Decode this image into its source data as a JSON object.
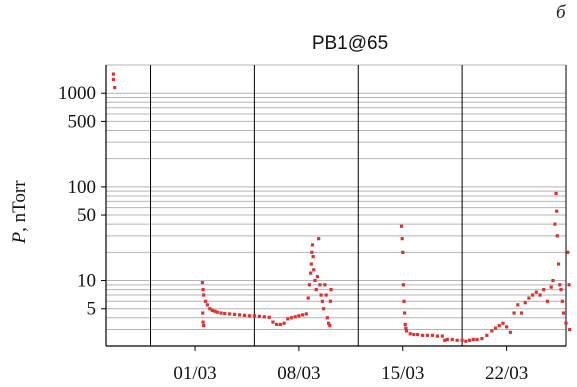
{
  "panel_letter": "б",
  "chart_data": {
    "type": "scatter",
    "title": "PB1@65",
    "ylabel_symbol": "P",
    "ylabel_rest": ", nTorr",
    "xlabel": "",
    "y_scale": "log",
    "ylim": [
      2,
      2000
    ],
    "xlim": [
      "2022-02-23",
      "2022-03-26"
    ],
    "y_ticks": [
      5,
      10,
      50,
      100,
      500,
      1000
    ],
    "y_tick_labels": [
      "5",
      "10",
      "50",
      "100",
      "500",
      "1000"
    ],
    "x_ticks": [
      "2022-03-01",
      "2022-03-08",
      "2022-03-15",
      "2022-03-22"
    ],
    "x_tick_labels": [
      "01/03",
      "08/03",
      "15/03",
      "22/03"
    ],
    "vertical_lines": [
      "2022-02-26",
      "2022-03-05",
      "2022-03-12",
      "2022-03-19",
      "2022-03-26"
    ],
    "grid": "horizontal minor lines",
    "marker_color": "#e03030",
    "series": [
      {
        "points": [
          [
            "2022-02-23 12:00",
            1600
          ],
          [
            "2022-02-23 12:00",
            1400
          ],
          [
            "2022-02-23 14:00",
            1150
          ],
          [
            "2022-03-01 12:00",
            9.5
          ],
          [
            "2022-03-01 13:00",
            8
          ],
          [
            "2022-03-01 14:00",
            7
          ],
          [
            "2022-03-01 12:30",
            4.5
          ],
          [
            "2022-03-01 13:00",
            3.6
          ],
          [
            "2022-03-01 14:00",
            3.3
          ],
          [
            "2022-03-01 17:00",
            6
          ],
          [
            "2022-03-01 20:00",
            5.5
          ],
          [
            "2022-03-02 00:00",
            5.0
          ],
          [
            "2022-03-02 04:00",
            4.8
          ],
          [
            "2022-03-02 08:00",
            4.7
          ],
          [
            "2022-03-02 12:00",
            4.6
          ],
          [
            "2022-03-02 18:00",
            4.5
          ],
          [
            "2022-03-03 00:00",
            4.45
          ],
          [
            "2022-03-03 08:00",
            4.4
          ],
          [
            "2022-03-03 16:00",
            4.35
          ],
          [
            "2022-03-04 00:00",
            4.3
          ],
          [
            "2022-03-04 08:00",
            4.25
          ],
          [
            "2022-03-04 16:00",
            4.2
          ],
          [
            "2022-03-05 00:00",
            4.2
          ],
          [
            "2022-03-05 08:00",
            4.15
          ],
          [
            "2022-03-05 16:00",
            4.1
          ],
          [
            "2022-03-06 00:00",
            4.05
          ],
          [
            "2022-03-06 06:00",
            3.6
          ],
          [
            "2022-03-06 12:00",
            3.4
          ],
          [
            "2022-03-06 18:00",
            3.4
          ],
          [
            "2022-03-07 00:00",
            3.5
          ],
          [
            "2022-03-07 06:00",
            3.9
          ],
          [
            "2022-03-07 12:00",
            4.0
          ],
          [
            "2022-03-07 18:00",
            4.1
          ],
          [
            "2022-03-08 00:00",
            4.2
          ],
          [
            "2022-03-08 06:00",
            4.3
          ],
          [
            "2022-03-08 12:00",
            4.4
          ],
          [
            "2022-03-08 15:00",
            6.5
          ],
          [
            "2022-03-08 17:00",
            9
          ],
          [
            "2022-03-08 19:00",
            12
          ],
          [
            "2022-03-08 20:00",
            15
          ],
          [
            "2022-03-08 21:00",
            20
          ],
          [
            "2022-03-08 22:00",
            24
          ],
          [
            "2022-03-08 23:00",
            18
          ],
          [
            "2022-03-09 00:00",
            13
          ],
          [
            "2022-03-09 02:00",
            10
          ],
          [
            "2022-03-09 04:00",
            8
          ],
          [
            "2022-03-09 06:00",
            11
          ],
          [
            "2022-03-09 08:00",
            28
          ],
          [
            "2022-03-09 10:00",
            9
          ],
          [
            "2022-03-09 12:00",
            7
          ],
          [
            "2022-03-09 14:00",
            6
          ],
          [
            "2022-03-09 16:00",
            5
          ],
          [
            "2022-03-09 18:00",
            9
          ],
          [
            "2022-03-09 20:00",
            7
          ],
          [
            "2022-03-09 22:00",
            4
          ],
          [
            "2022-03-10 00:00",
            3.5
          ],
          [
            "2022-03-10 02:00",
            3.3
          ],
          [
            "2022-03-10 03:00",
            6
          ],
          [
            "2022-03-10 04:00",
            8
          ],
          [
            "2022-03-14 22:00",
            38
          ],
          [
            "2022-03-14 23:00",
            28
          ],
          [
            "2022-03-15 00:00",
            20
          ],
          [
            "2022-03-15 01:00",
            9
          ],
          [
            "2022-03-15 02:00",
            6
          ],
          [
            "2022-03-15 03:00",
            4.5
          ],
          [
            "2022-03-15 04:00",
            3.4
          ],
          [
            "2022-03-15 05:00",
            3.1
          ],
          [
            "2022-03-15 06:00",
            2.9
          ],
          [
            "2022-03-15 12:00",
            2.7
          ],
          [
            "2022-03-15 18:00",
            2.65
          ],
          [
            "2022-03-16 00:00",
            2.65
          ],
          [
            "2022-03-16 08:00",
            2.6
          ],
          [
            "2022-03-16 16:00",
            2.6
          ],
          [
            "2022-03-17 00:00",
            2.6
          ],
          [
            "2022-03-17 08:00",
            2.55
          ],
          [
            "2022-03-17 16:00",
            2.55
          ],
          [
            "2022-03-17 20:00",
            2.3
          ],
          [
            "2022-03-18 00:00",
            2.35
          ],
          [
            "2022-03-18 08:00",
            2.35
          ],
          [
            "2022-03-18 16:00",
            2.3
          ],
          [
            "2022-03-19 00:00",
            2.3
          ],
          [
            "2022-03-19 06:00",
            2.25
          ],
          [
            "2022-03-19 12:00",
            2.3
          ],
          [
            "2022-03-19 18:00",
            2.35
          ],
          [
            "2022-03-20 00:00",
            2.35
          ],
          [
            "2022-03-20 08:00",
            2.4
          ],
          [
            "2022-03-20 16:00",
            2.6
          ],
          [
            "2022-03-21 00:00",
            2.9
          ],
          [
            "2022-03-21 06:00",
            3.1
          ],
          [
            "2022-03-21 12:00",
            3.3
          ],
          [
            "2022-03-21 18:00",
            3.5
          ],
          [
            "2022-03-22 00:00",
            3.2
          ],
          [
            "2022-03-22 06:00",
            2.8
          ],
          [
            "2022-03-22 12:00",
            4.5
          ],
          [
            "2022-03-22 18:00",
            5.5
          ],
          [
            "2022-03-23 00:00",
            4.5
          ],
          [
            "2022-03-23 06:00",
            5.8
          ],
          [
            "2022-03-23 12:00",
            6.5
          ],
          [
            "2022-03-23 18:00",
            7
          ],
          [
            "2022-03-24 00:00",
            7.5
          ],
          [
            "2022-03-24 06:00",
            7
          ],
          [
            "2022-03-24 12:00",
            8
          ],
          [
            "2022-03-24 18:00",
            6
          ],
          [
            "2022-03-25 00:00",
            8.5
          ],
          [
            "2022-03-25 03:00",
            10
          ],
          [
            "2022-03-25 06:00",
            40
          ],
          [
            "2022-03-25 08:00",
            85
          ],
          [
            "2022-03-25 09:00",
            55
          ],
          [
            "2022-03-25 10:00",
            30
          ],
          [
            "2022-03-25 12:00",
            15
          ],
          [
            "2022-03-25 14:00",
            9
          ],
          [
            "2022-03-25 16:00",
            8
          ],
          [
            "2022-03-25 18:00",
            6
          ],
          [
            "2022-03-25 20:00",
            4.5
          ],
          [
            "2022-03-26 00:00",
            3.5
          ],
          [
            "2022-03-26 03:00",
            20
          ],
          [
            "2022-03-26 05:00",
            9
          ],
          [
            "2022-03-26 06:00",
            3
          ]
        ]
      }
    ]
  }
}
